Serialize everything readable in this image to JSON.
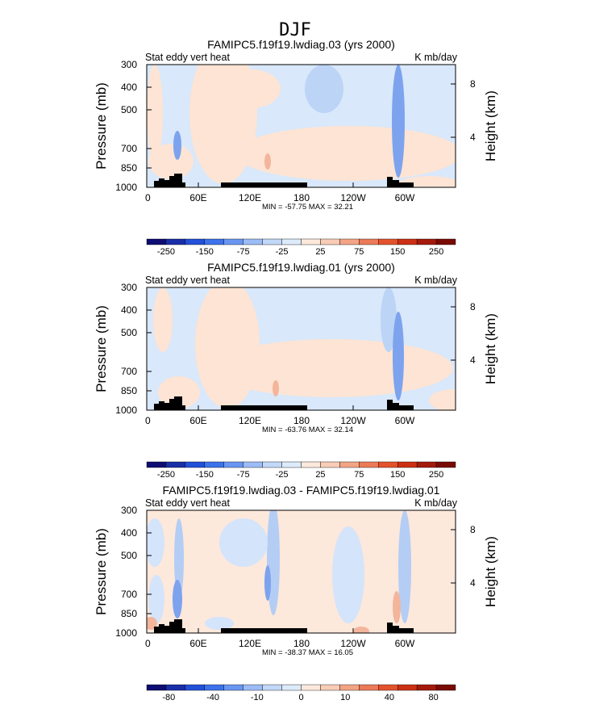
{
  "figure_title": "DJF",
  "colors": {
    "terrain": "#000000",
    "frame": "#000000"
  },
  "chart_data": [
    {
      "type": "heatmap",
      "title": "FAMIPC5.f19f19.lwdiag.03 (yrs 2000)",
      "left_label": "Stat eddy vert heat",
      "right_label": "K mb/day",
      "ylabel": "Pressure (mb)",
      "y2label": "Height (km)",
      "pressure_ticks": [
        "300",
        "400",
        "500",
        "700",
        "850",
        "1000"
      ],
      "height_ticks": [
        "8",
        "4"
      ],
      "lon_ticks": [
        "0",
        "60E",
        "120E",
        "180",
        "120W",
        "60W"
      ],
      "stats": "MIN = -57.75   MAX =  32.21",
      "colorbar_labels": [
        "-250",
        "-150",
        "-75",
        "-25",
        "25",
        "75",
        "150",
        "250"
      ],
      "colorbar_colors": [
        "#0d0d73",
        "#1a2ea8",
        "#2250d8",
        "#3c72ea",
        "#6a96f2",
        "#9cbcf6",
        "#c2d8f8",
        "#ddeafa",
        "#fde8dc",
        "#f8ccb6",
        "#f2a484",
        "#ec7a58",
        "#e4522c",
        "#cc3014",
        "#a41a0a",
        "#7a0a04"
      ],
      "bg_color": "#d9e8fa",
      "contour_colors": [
        "#fde4d4",
        "#bcd4f6",
        "#7da3ee",
        "#f3b59c"
      ]
    },
    {
      "type": "heatmap",
      "title": "FAMIPC5.f19f19.lwdiag.01 (yrs 2000)",
      "left_label": "Stat eddy vert heat",
      "right_label": "K mb/day",
      "ylabel": "Pressure (mb)",
      "y2label": "Height (km)",
      "pressure_ticks": [
        "300",
        "400",
        "500",
        "700",
        "850",
        "1000"
      ],
      "height_ticks": [
        "8",
        "4"
      ],
      "lon_ticks": [
        "0",
        "60E",
        "120E",
        "180",
        "120W",
        "60W"
      ],
      "stats": "MIN = -63.76   MAX =  32.14",
      "colorbar_labels": [
        "-250",
        "-150",
        "-75",
        "-25",
        "25",
        "75",
        "150",
        "250"
      ],
      "colorbar_colors": [
        "#0d0d73",
        "#1a2ea8",
        "#2250d8",
        "#3c72ea",
        "#6a96f2",
        "#9cbcf6",
        "#c2d8f8",
        "#ddeafa",
        "#fde8dc",
        "#f8ccb6",
        "#f2a484",
        "#ec7a58",
        "#e4522c",
        "#cc3014",
        "#a41a0a",
        "#7a0a04"
      ],
      "bg_color": "#d9e8fa",
      "contour_colors": [
        "#fde4d4",
        "#bcd4f6",
        "#7da3ee",
        "#f3b59c"
      ]
    },
    {
      "type": "heatmap",
      "title": "FAMIPC5.f19f19.lwdiag.03 - FAMIPC5.f19f19.lwdiag.01",
      "left_label": "Stat eddy vert heat",
      "right_label": "K mb/day",
      "ylabel": "Pressure (mb)",
      "y2label": "Height (km)",
      "pressure_ticks": [
        "300",
        "400",
        "500",
        "700",
        "850",
        "1000"
      ],
      "height_ticks": [
        "8",
        "4"
      ],
      "lon_ticks": [
        "0",
        "60E",
        "120E",
        "180",
        "120W",
        "60W"
      ],
      "stats": "MIN = -38.37   MAX =  16.05",
      "colorbar_labels": [
        "-80",
        "-40",
        "-10",
        "0",
        "10",
        "40",
        "80"
      ],
      "colorbar_colors": [
        "#0d0d73",
        "#1a2ea8",
        "#2250d8",
        "#3c72ea",
        "#6a96f2",
        "#9cbcf6",
        "#c2d8f8",
        "#ddeafa",
        "#fde8dc",
        "#f8ccb6",
        "#f2a484",
        "#ec7a58",
        "#e4522c",
        "#cc3014",
        "#a41a0a",
        "#7a0a04"
      ],
      "bg_color": "#fde8dc",
      "contour_colors": [
        "#d4e4fa",
        "#b4cdf5",
        "#7da3ee",
        "#f3b59c"
      ]
    }
  ]
}
